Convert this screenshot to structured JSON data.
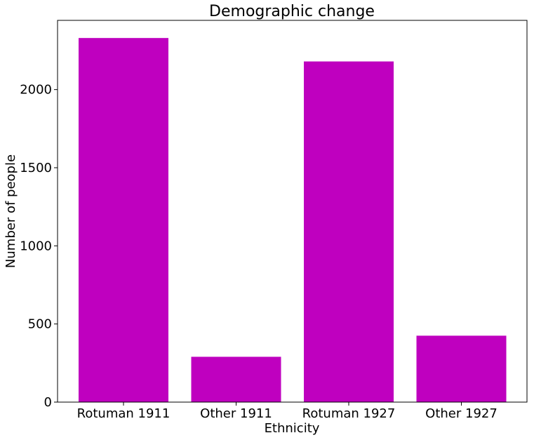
{
  "chart_data": {
    "type": "bar",
    "title": "Demographic change",
    "xlabel": "Ethnicity",
    "ylabel": "Number of people",
    "categories": [
      "Rotuman 1911",
      "Other 1911",
      "Rotuman 1927",
      "Other 1927"
    ],
    "values": [
      2330,
      290,
      2180,
      425
    ],
    "yticks": [
      0,
      500,
      1000,
      1500,
      2000
    ],
    "ylim": [
      0,
      2443
    ],
    "grid": false,
    "bar_color": "#bf00bf"
  }
}
